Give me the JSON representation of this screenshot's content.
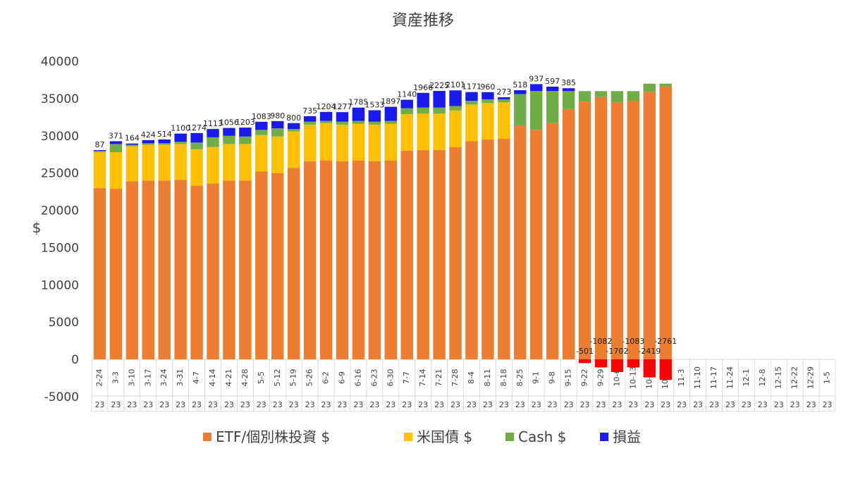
{
  "chart_data": {
    "type": "bar",
    "stacked": true,
    "title": "資産推移",
    "xlabel": "",
    "ylabel": "$",
    "ylim": [
      -5000,
      40000
    ],
    "yticks": [
      -5000,
      0,
      5000,
      10000,
      15000,
      20000,
      25000,
      30000,
      35000,
      40000
    ],
    "grid": false,
    "legend_position": "bottom",
    "categories": [
      "2-24",
      "3-3",
      "3-10",
      "3-17",
      "3-24",
      "3-31",
      "4-7",
      "4-14",
      "4-21",
      "4-28",
      "5-5",
      "5-12",
      "5-19",
      "5-26",
      "6-2",
      "6-9",
      "6-16",
      "6-23",
      "6-30",
      "7-7",
      "7-14",
      "7-21",
      "7-28",
      "8-4",
      "8-11",
      "8-18",
      "8-25",
      "9-1",
      "9-8",
      "9-15",
      "9-22",
      "9-29",
      "10-6",
      "10-13",
      "10-20",
      "10-27",
      "11-3",
      "11-10",
      "11-17",
      "11-24",
      "12-1",
      "12-8",
      "12-15",
      "12-22",
      "12-29",
      "1-5"
    ],
    "year_labels": [
      "23",
      "23",
      "23",
      "23",
      "23",
      "23",
      "23",
      "23",
      "23",
      "23",
      "23",
      "23",
      "23",
      "23",
      "23",
      "23",
      "23",
      "23",
      "23",
      "23",
      "23",
      "23",
      "23",
      "23",
      "23",
      "23",
      "23",
      "23",
      "23",
      "23",
      "23",
      "23",
      "23",
      "23",
      "23",
      "23",
      "23",
      "23",
      "23",
      "23",
      "23",
      "23",
      "23",
      "23",
      "23",
      "23"
    ],
    "series": [
      {
        "name": "ETF/個別株投資 $",
        "color": "#ED7D31",
        "values": [
          23000,
          22900,
          23900,
          24000,
          24000,
          24100,
          23300,
          23600,
          24000,
          24000,
          25200,
          25000,
          25700,
          26600,
          26700,
          26600,
          26700,
          26600,
          26700,
          28000,
          28100,
          28100,
          28500,
          29300,
          29500,
          29600,
          31400,
          30800,
          31700,
          33600,
          34600,
          35200,
          34500,
          34700,
          35900,
          36600,
          null,
          null,
          null,
          null,
          null,
          null,
          null,
          null,
          null,
          null
        ]
      },
      {
        "name": "米国債 $",
        "color": "#FFC000",
        "values": [
          4800,
          4900,
          4700,
          4800,
          4800,
          4800,
          4900,
          4900,
          4900,
          4900,
          4900,
          4900,
          4900,
          4900,
          5000,
          4900,
          4900,
          4900,
          4900,
          4900,
          4900,
          4900,
          4900,
          4900,
          4900,
          4900,
          0,
          0,
          0,
          0,
          0,
          0,
          0,
          0,
          0,
          0,
          null,
          null,
          null,
          null,
          null,
          null,
          null,
          null,
          null,
          null
        ]
      },
      {
        "name": "Cash $",
        "color": "#70AD47",
        "values": [
          200,
          1100,
          200,
          200,
          200,
          300,
          900,
          1300,
          1100,
          1000,
          700,
          1100,
          300,
          400,
          300,
          400,
          400,
          400,
          400,
          800,
          800,
          800,
          600,
          500,
          500,
          400,
          4200,
          5200,
          4300,
          2400,
          1400,
          800,
          1500,
          1300,
          1100,
          400,
          null,
          null,
          null,
          null,
          null,
          null,
          null,
          null,
          null,
          null
        ]
      },
      {
        "name": "損益",
        "color": "#1A1AF0",
        "negative_color": "#FF0000",
        "values": [
          87,
          371,
          164,
          424,
          514,
          1100,
          1274,
          1113,
          1056,
          1203,
          1083,
          980,
          800,
          735,
          1204,
          1277,
          1785,
          1533,
          1897,
          1140,
          1966,
          2225,
          2101,
          1171,
          960,
          273,
          518,
          937,
          597,
          385,
          -501,
          -1082,
          -1702,
          -1083,
          -2419,
          -2761,
          null,
          null,
          null,
          null,
          null,
          null,
          null,
          null,
          null,
          null
        ],
        "labels": [
          "87",
          "371",
          "164",
          "424",
          "514",
          "1100",
          "1274",
          "1113",
          "1056",
          "1203",
          "1083",
          "980",
          "800",
          "735",
          "1204",
          "1277",
          "1785",
          "1533",
          "1897",
          "1140",
          "1966",
          "2225",
          "2101",
          "1171",
          "960",
          "273",
          "518",
          "937",
          "597",
          "385",
          "-501",
          "-1082",
          "-1702",
          "-1083",
          "-2419",
          "-2761",
          "",
          "",
          "",
          "",
          "",
          "",
          "",
          "",
          "",
          ""
        ]
      }
    ]
  }
}
